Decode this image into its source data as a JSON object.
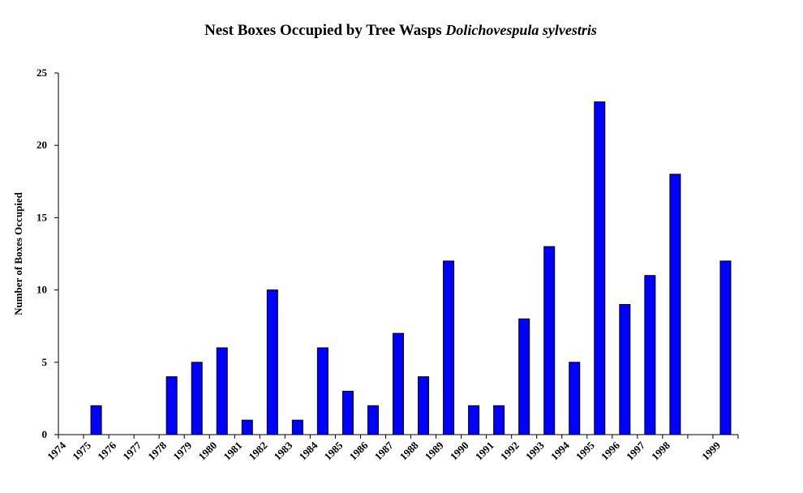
{
  "chart_data": {
    "type": "bar",
    "title": "Nest Boxes Occupied by Tree Wasps",
    "title_species": "Dolichovespula sylvestris",
    "y_label": "Number of Boxes Occupied",
    "categories": [
      "1974",
      "1975",
      "1976",
      "1977",
      "1978",
      "1979",
      "1980",
      "1981",
      "1982",
      "1983",
      "1984",
      "1985",
      "1986",
      "1987",
      "1988",
      "1989",
      "1990",
      "1991",
      "1992",
      "1993",
      "1994",
      "1995",
      "1996",
      "1997",
      "1998",
      null,
      "1999"
    ],
    "values": [
      0,
      2,
      0,
      0,
      4,
      5,
      6,
      1,
      10,
      1,
      6,
      3,
      2,
      7,
      4,
      12,
      2,
      2,
      8,
      13,
      5,
      23,
      9,
      11,
      18,
      null,
      12
    ],
    "color": "#0000ff",
    "ylim": [
      0,
      25
    ],
    "yticks": [
      0,
      5,
      10,
      15,
      20,
      25
    ],
    "grid": false
  }
}
